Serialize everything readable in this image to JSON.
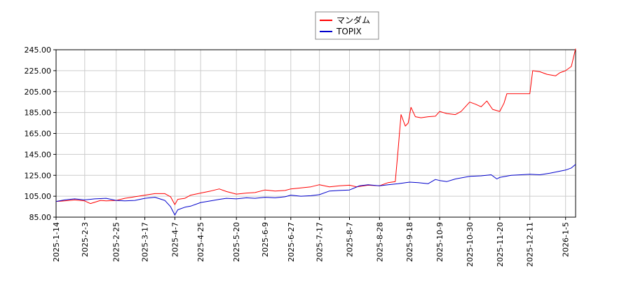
{
  "chart_data": {
    "type": "line",
    "title": "",
    "xlabel": "",
    "ylabel": "",
    "ylim": [
      85,
      245
    ],
    "y_ticks": [
      "85.00",
      "105.00",
      "125.00",
      "145.00",
      "165.00",
      "185.00",
      "205.00",
      "225.00",
      "245.00"
    ],
    "x_ticks": [
      "2025-1-14",
      "2025-2-3",
      "2025-2-25",
      "2025-3-17",
      "2025-4-7",
      "2025-4-25",
      "2025-5-20",
      "2025-6-9",
      "2025-6-27",
      "2025-7-17",
      "2025-8-7",
      "2025-8-28",
      "2025-9-18",
      "2025-10-9",
      "2025-10-30",
      "2025-11-20",
      "2025-12-11",
      "2026-1-5"
    ],
    "grid": true,
    "legend_position": "top-center",
    "series": [
      {
        "name": "マンダム",
        "color": "#ff0000",
        "points": [
          [
            "2025-01-14",
            100.0
          ],
          [
            "2025-01-20",
            100.5
          ],
          [
            "2025-01-27",
            101.5
          ],
          [
            "2025-02-03",
            100.5
          ],
          [
            "2025-02-07",
            98.0
          ],
          [
            "2025-02-14",
            101.0
          ],
          [
            "2025-02-18",
            100.5
          ],
          [
            "2025-02-25",
            101.0
          ],
          [
            "2025-03-03",
            103.0
          ],
          [
            "2025-03-10",
            104.5
          ],
          [
            "2025-03-17",
            106.0
          ],
          [
            "2025-03-24",
            107.5
          ],
          [
            "2025-03-31",
            107.5
          ],
          [
            "2025-04-04",
            104.5
          ],
          [
            "2025-04-07",
            97.0
          ],
          [
            "2025-04-09",
            102.0
          ],
          [
            "2025-04-14",
            103.0
          ],
          [
            "2025-04-18",
            106.0
          ],
          [
            "2025-04-25",
            108.0
          ],
          [
            "2025-05-02",
            110.0
          ],
          [
            "2025-05-08",
            112.0
          ],
          [
            "2025-05-13",
            109.5
          ],
          [
            "2025-05-20",
            107.0
          ],
          [
            "2025-05-27",
            108.0
          ],
          [
            "2025-06-02",
            108.5
          ],
          [
            "2025-06-09",
            111.0
          ],
          [
            "2025-06-16",
            110.0
          ],
          [
            "2025-06-23",
            110.5
          ],
          [
            "2025-06-27",
            112.0
          ],
          [
            "2025-07-04",
            113.0
          ],
          [
            "2025-07-11",
            114.0
          ],
          [
            "2025-07-17",
            116.0
          ],
          [
            "2025-07-24",
            114.0
          ],
          [
            "2025-07-31",
            115.0
          ],
          [
            "2025-08-07",
            115.5
          ],
          [
            "2025-08-12",
            114.0
          ],
          [
            "2025-08-20",
            115.5
          ],
          [
            "2025-08-28",
            115.0
          ],
          [
            "2025-09-03",
            118.0
          ],
          [
            "2025-09-08",
            119.0
          ],
          [
            "2025-09-10",
            150.0
          ],
          [
            "2025-09-12",
            183.0
          ],
          [
            "2025-09-15",
            172.0
          ],
          [
            "2025-09-17",
            175.0
          ],
          [
            "2025-09-19",
            190.0
          ],
          [
            "2025-09-22",
            181.0
          ],
          [
            "2025-09-26",
            180.0
          ],
          [
            "2025-10-01",
            181.0
          ],
          [
            "2025-10-06",
            181.5
          ],
          [
            "2025-10-09",
            186.0
          ],
          [
            "2025-10-14",
            184.0
          ],
          [
            "2025-10-20",
            183.0
          ],
          [
            "2025-10-24",
            186.0
          ],
          [
            "2025-10-30",
            195.0
          ],
          [
            "2025-11-03",
            193.0
          ],
          [
            "2025-11-07",
            190.5
          ],
          [
            "2025-11-11",
            196.0
          ],
          [
            "2025-11-15",
            188.0
          ],
          [
            "2025-11-20",
            186.0
          ],
          [
            "2025-11-23",
            194.0
          ],
          [
            "2025-11-25",
            203.0
          ],
          [
            "2025-12-11",
            203.0
          ],
          [
            "2025-12-13",
            225.0
          ],
          [
            "2025-12-18",
            224.0
          ],
          [
            "2025-12-23",
            221.5
          ],
          [
            "2025-12-29",
            220.0
          ],
          [
            "2026-01-01",
            223.0
          ],
          [
            "2026-01-05",
            225.0
          ],
          [
            "2026-01-09",
            229.0
          ],
          [
            "2026-01-12",
            246.0
          ]
        ]
      },
      {
        "name": "TOPIX",
        "color": "#0000cc",
        "points": [
          [
            "2025-01-14",
            100.0
          ],
          [
            "2025-01-20",
            101.5
          ],
          [
            "2025-01-27",
            102.5
          ],
          [
            "2025-02-03",
            101.5
          ],
          [
            "2025-02-10",
            102.5
          ],
          [
            "2025-02-18",
            103.0
          ],
          [
            "2025-02-25",
            101.0
          ],
          [
            "2025-03-03",
            100.5
          ],
          [
            "2025-03-10",
            101.0
          ],
          [
            "2025-03-17",
            103.0
          ],
          [
            "2025-03-24",
            104.0
          ],
          [
            "2025-03-31",
            101.0
          ],
          [
            "2025-04-04",
            95.0
          ],
          [
            "2025-04-07",
            87.0
          ],
          [
            "2025-04-09",
            92.0
          ],
          [
            "2025-04-14",
            94.5
          ],
          [
            "2025-04-18",
            95.5
          ],
          [
            "2025-04-25",
            99.0
          ],
          [
            "2025-05-02",
            100.5
          ],
          [
            "2025-05-08",
            102.0
          ],
          [
            "2025-05-13",
            103.0
          ],
          [
            "2025-05-20",
            102.5
          ],
          [
            "2025-05-27",
            103.5
          ],
          [
            "2025-06-02",
            103.0
          ],
          [
            "2025-06-09",
            104.0
          ],
          [
            "2025-06-16",
            103.5
          ],
          [
            "2025-06-23",
            104.5
          ],
          [
            "2025-06-27",
            106.0
          ],
          [
            "2025-07-04",
            105.0
          ],
          [
            "2025-07-11",
            105.5
          ],
          [
            "2025-07-17",
            106.5
          ],
          [
            "2025-07-24",
            110.0
          ],
          [
            "2025-07-31",
            110.5
          ],
          [
            "2025-08-07",
            111.0
          ],
          [
            "2025-08-14",
            115.0
          ],
          [
            "2025-08-20",
            116.0
          ],
          [
            "2025-08-28",
            115.0
          ],
          [
            "2025-09-03",
            116.0
          ],
          [
            "2025-09-10",
            117.0
          ],
          [
            "2025-09-18",
            118.5
          ],
          [
            "2025-09-24",
            118.0
          ],
          [
            "2025-10-01",
            117.0
          ],
          [
            "2025-10-06",
            121.0
          ],
          [
            "2025-10-09",
            120.0
          ],
          [
            "2025-10-14",
            119.0
          ],
          [
            "2025-10-20",
            121.5
          ],
          [
            "2025-10-30",
            124.0
          ],
          [
            "2025-11-07",
            124.5
          ],
          [
            "2025-11-14",
            125.5
          ],
          [
            "2025-11-18",
            121.5
          ],
          [
            "2025-11-20",
            123.0
          ],
          [
            "2025-11-28",
            125.0
          ],
          [
            "2025-12-05",
            125.5
          ],
          [
            "2025-12-11",
            126.0
          ],
          [
            "2025-12-18",
            125.5
          ],
          [
            "2025-12-25",
            127.0
          ],
          [
            "2026-01-05",
            130.0
          ],
          [
            "2026-01-09",
            132.0
          ],
          [
            "2026-01-12",
            135.5
          ]
        ]
      }
    ]
  }
}
